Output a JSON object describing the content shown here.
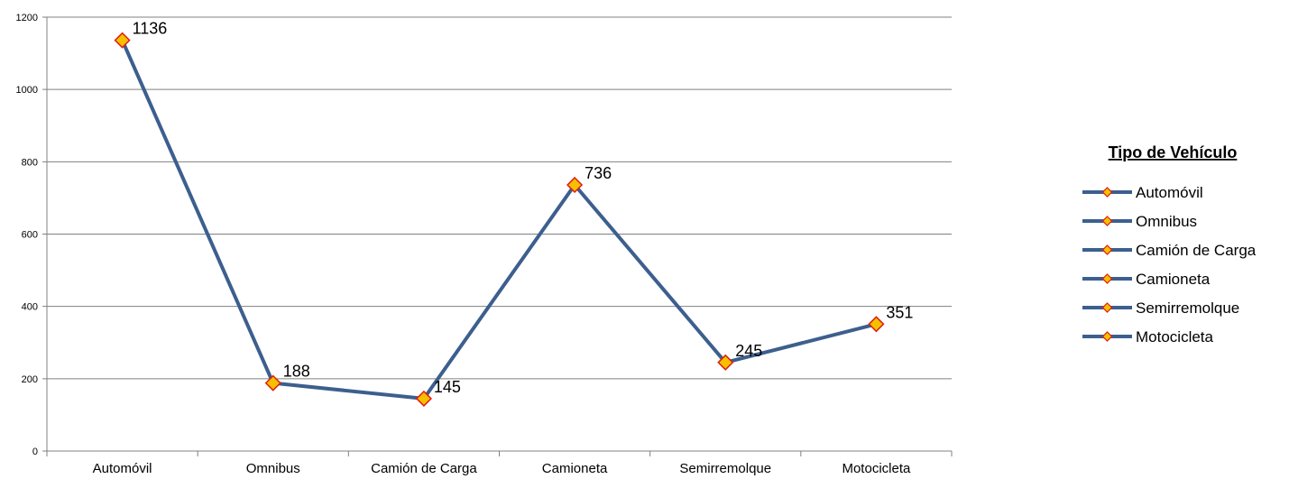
{
  "chart_data": {
    "type": "line",
    "categories": [
      "Automóvil",
      "Omnibus",
      "Camión de Carga",
      "Camioneta",
      "Semirremolque",
      "Motocicleta"
    ],
    "values": [
      1136,
      188,
      145,
      736,
      245,
      351
    ],
    "ylim": [
      0,
      1200
    ],
    "yticks": [
      0,
      200,
      400,
      600,
      800,
      1000,
      1200
    ],
    "grid": true,
    "legend": {
      "title": "Tipo de Vehículo",
      "placement": "right",
      "entries": [
        "Automóvil",
        "Omnibus",
        "Camión de Carga",
        "Camioneta",
        "Semirremolque",
        "Motocicleta"
      ]
    },
    "colors": {
      "line": "#3c5f8e",
      "marker_fill": "#f5c000",
      "marker_stroke": "#e11a10",
      "grid": "#808080"
    }
  }
}
